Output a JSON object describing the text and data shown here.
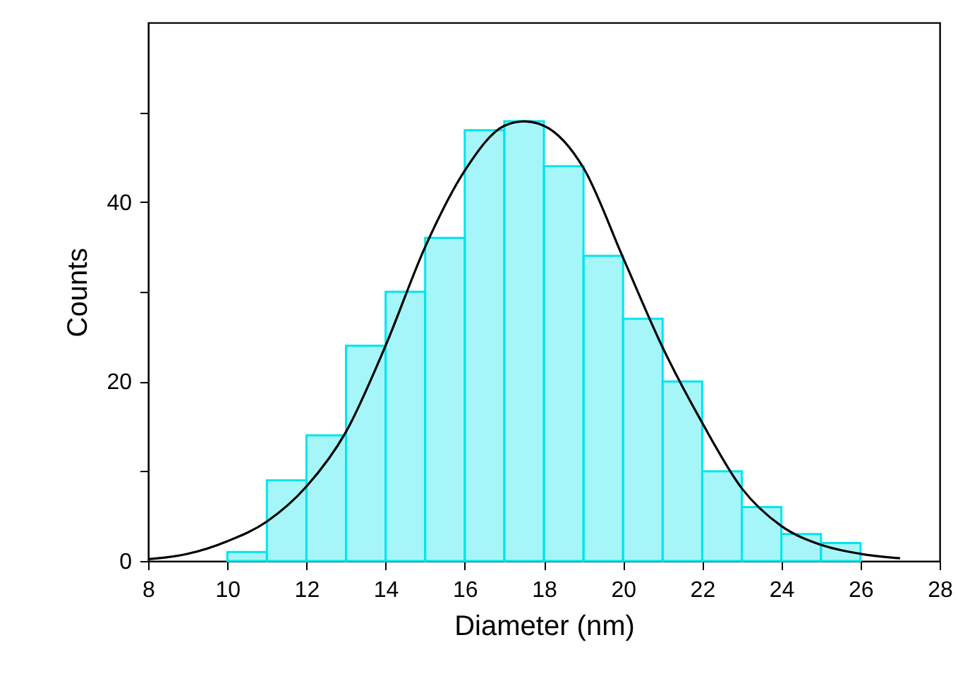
{
  "chart_data": {
    "type": "histogram",
    "xlabel": "Diameter (nm)",
    "ylabel": "Counts",
    "bins": [
      10,
      11,
      12,
      13,
      14,
      15,
      16,
      17,
      18,
      19,
      20,
      21,
      22,
      23,
      24,
      25,
      26
    ],
    "values": [
      1,
      9,
      14,
      24,
      30,
      36,
      48,
      49,
      44,
      34,
      27,
      20,
      10,
      6,
      3,
      2
    ],
    "color": "#00e5ee",
    "series": [
      {
        "type": "line",
        "color": "#000000",
        "x": [
          8,
          9,
          10,
          11,
          12,
          13,
          14,
          15,
          16,
          17,
          17.5,
          18,
          19,
          20,
          21,
          22,
          23,
          24,
          25,
          26,
          27
        ],
        "values": [
          0.2,
          0.8,
          2.2,
          4.4,
          8.3,
          14.4,
          24,
          35,
          43.5,
          48.5,
          49,
          48.5,
          43.8,
          33.8,
          23.8,
          15.4,
          8.1,
          3.9,
          1.8,
          0.8,
          0.3
        ]
      }
    ],
    "xlim": [
      8,
      28
    ],
    "xticks": [
      8,
      10,
      12,
      14,
      16,
      18,
      20,
      22,
      24,
      26,
      28
    ],
    "ylim": [
      0,
      60
    ],
    "yticks": [
      0,
      {
        "value": 10,
        "label": null
      },
      20,
      {
        "value": 30,
        "label": null
      },
      40,
      {
        "value": 50,
        "label": null
      }
    ],
    "grid": false
  }
}
